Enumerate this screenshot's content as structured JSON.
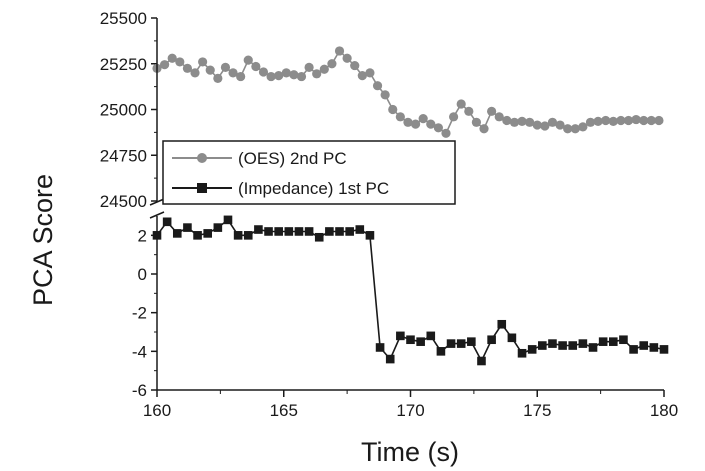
{
  "chart_data": {
    "type": "line",
    "xlabel": "Time (s)",
    "ylabel": "PCA Score",
    "x_ticks": [
      "160",
      "165",
      "170",
      "175",
      "180"
    ],
    "xlim": [
      160,
      180
    ],
    "upper_panel": {
      "ylim": [
        24500,
        25500
      ],
      "y_ticks": [
        "24500",
        "24750",
        "25000",
        "25250",
        "25500"
      ]
    },
    "lower_panel": {
      "ylim": [
        -6,
        3
      ],
      "y_ticks": [
        "-6",
        "-4",
        "-2",
        "0",
        "2"
      ]
    },
    "axis_break": true,
    "legend_position": "center-left",
    "series": [
      {
        "name": "(OES) 2nd PC",
        "panel": "upper",
        "marker": "circle",
        "color": "#8c8c8c",
        "x": [
          160.0,
          160.3,
          160.6,
          160.9,
          161.2,
          161.5,
          161.8,
          162.1,
          162.4,
          162.7,
          163.0,
          163.3,
          163.6,
          163.9,
          164.2,
          164.5,
          164.8,
          165.1,
          165.4,
          165.7,
          166.0,
          166.3,
          166.6,
          166.9,
          167.2,
          167.5,
          167.8,
          168.1,
          168.4,
          168.7,
          169.0,
          169.3,
          169.6,
          169.9,
          170.2,
          170.5,
          170.8,
          171.1,
          171.4,
          171.7,
          172.0,
          172.3,
          172.6,
          172.9,
          173.2,
          173.5,
          173.8,
          174.1,
          174.4,
          174.7,
          175.0,
          175.3,
          175.6,
          175.9,
          176.2,
          176.5,
          176.8,
          177.1,
          177.4,
          177.7,
          178.0,
          178.3,
          178.6,
          178.9,
          179.2,
          179.5,
          179.8
        ],
        "y": [
          25225,
          25245,
          25280,
          25260,
          25225,
          25200,
          25260,
          25215,
          25170,
          25230,
          25200,
          25180,
          25270,
          25235,
          25205,
          25180,
          25185,
          25200,
          25190,
          25180,
          25230,
          25195,
          25220,
          25250,
          25320,
          25280,
          25240,
          25185,
          25200,
          25130,
          25080,
          25000,
          24960,
          24930,
          24920,
          24950,
          24920,
          24900,
          24870,
          24960,
          25030,
          24990,
          24930,
          24895,
          24990,
          24960,
          24940,
          24930,
          24935,
          24930,
          24915,
          24910,
          24930,
          24915,
          24895,
          24895,
          24905,
          24930,
          24935,
          24940,
          24935,
          24940,
          24940,
          24945,
          24940,
          24940,
          24940
        ]
      },
      {
        "name": "(Impedance) 1st PC",
        "panel": "lower",
        "marker": "square",
        "color": "#1a1a1a",
        "x": [
          160.0,
          160.4,
          160.8,
          161.2,
          161.6,
          162.0,
          162.4,
          162.8,
          163.2,
          163.6,
          164.0,
          164.4,
          164.8,
          165.2,
          165.6,
          166.0,
          166.4,
          166.8,
          167.2,
          167.6,
          168.0,
          168.4,
          168.8,
          169.2,
          169.6,
          170.0,
          170.4,
          170.8,
          171.2,
          171.6,
          172.0,
          172.4,
          172.8,
          173.2,
          173.6,
          174.0,
          174.4,
          174.8,
          175.2,
          175.6,
          176.0,
          176.4,
          176.8,
          177.2,
          177.6,
          178.0,
          178.4,
          178.8,
          179.2,
          179.6,
          180.0
        ],
        "y": [
          2.0,
          2.7,
          2.1,
          2.4,
          2.0,
          2.1,
          2.4,
          2.8,
          2.0,
          2.0,
          2.3,
          2.2,
          2.2,
          2.2,
          2.2,
          2.2,
          1.9,
          2.2,
          2.2,
          2.2,
          2.3,
          2.0,
          -3.8,
          -4.4,
          -3.2,
          -3.4,
          -3.5,
          -3.2,
          -4.0,
          -3.6,
          -3.6,
          -3.5,
          -4.5,
          -3.4,
          -2.6,
          -3.3,
          -4.1,
          -3.9,
          -3.7,
          -3.6,
          -3.7,
          -3.7,
          -3.6,
          -3.8,
          -3.5,
          -3.5,
          -3.4,
          -3.9,
          -3.7,
          -3.8,
          -3.9
        ]
      }
    ]
  }
}
